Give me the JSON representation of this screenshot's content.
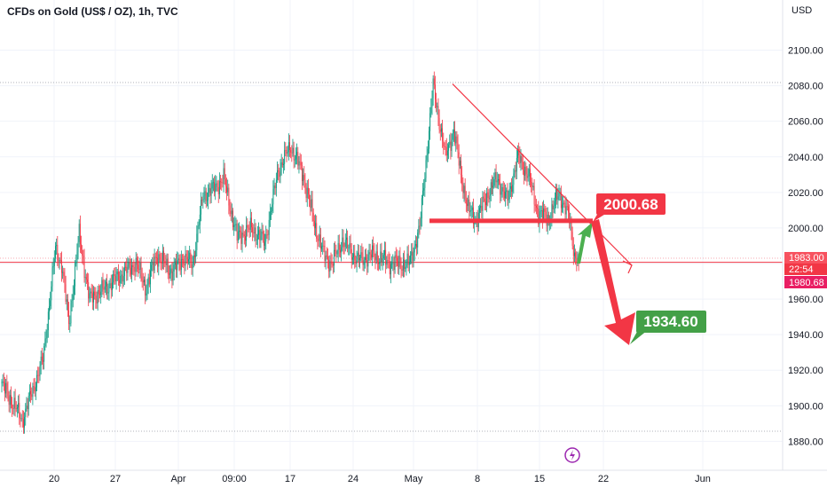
{
  "header": {
    "title": "CFDs on Gold (US$ / OZ), 1h, TVC"
  },
  "price_axis": {
    "currency": "USD",
    "ticks": [
      "2100.00",
      "2080.00",
      "2060.00",
      "2040.00",
      "2020.00",
      "2000.00",
      "1960.00",
      "1940.00",
      "1920.00",
      "1900.00",
      "1880.00"
    ]
  },
  "price_tags": {
    "level": "1983.00",
    "countdown": "22:54",
    "last": "1980.68"
  },
  "time_axis": {
    "ticks": [
      "20",
      "27",
      "Apr",
      "09:00",
      "17",
      "24",
      "May",
      "8",
      "15",
      "22",
      "Jun"
    ]
  },
  "annotations": {
    "resistance_label": "2000.68",
    "target_label": "1934.60"
  },
  "colors": {
    "up": "#089981",
    "down": "#f23645",
    "drawing_red": "#f23645",
    "label_green": "#43a047",
    "arrow_green": "#4caf50",
    "grid": "#f0f3fa",
    "axis_text": "#131722",
    "tag_dark_red": "#e91e63",
    "event_icon": "#9c27b0"
  },
  "icons": {
    "event_marker": "lightning-event-icon"
  },
  "chart_data": {
    "type": "candlestick",
    "symbol": "CFDs on Gold (US$ / OZ), 1h, TVC",
    "ylim": [
      1875,
      2110
    ],
    "yticks": [
      1880,
      1900,
      1920,
      1940,
      1960,
      2000,
      2020,
      2040,
      2060,
      2080,
      2100
    ],
    "close_path": {
      "x_index": [
        0,
        20,
        40,
        52,
        58,
        65,
        75,
        85,
        100,
        112,
        130,
        140,
        150,
        165,
        175,
        185,
        195,
        205,
        215,
        228,
        242,
        255,
        268,
        280,
        292,
        304,
        312,
        320,
        330,
        345,
        360,
        378,
        395,
        405,
        418,
        430,
        438,
        445,
        452,
        460,
        470,
        480,
        490,
        500,
        510,
        520,
        530,
        540,
        550,
        555,
        559
      ],
      "close": [
        1912,
        1892,
        1926,
        1988,
        1980,
        1946,
        1996,
        1960,
        1966,
        1972,
        1980,
        1966,
        1985,
        1975,
        1983,
        1980,
        2018,
        2022,
        2028,
        1995,
        2000,
        1992,
        2033,
        2046,
        2030,
        2000,
        1985,
        1980,
        1993,
        1982,
        1985,
        1980,
        1980,
        2000,
        2080,
        2040,
        2055,
        2030,
        2010,
        2005,
        2018,
        2028,
        2015,
        2040,
        2030,
        2008,
        2005,
        2020,
        2005,
        1985,
        1980.68
      ]
    },
    "horizontal_levels": [
      1983.0,
      1980.68
    ],
    "resistance_zone": 2004,
    "resistance_label": 2000.68,
    "target": 1934.6,
    "trendline": {
      "from": {
        "date": "May 4",
        "price": 2081
      },
      "to": {
        "date": "May 24",
        "price": 1979
      }
    }
  }
}
